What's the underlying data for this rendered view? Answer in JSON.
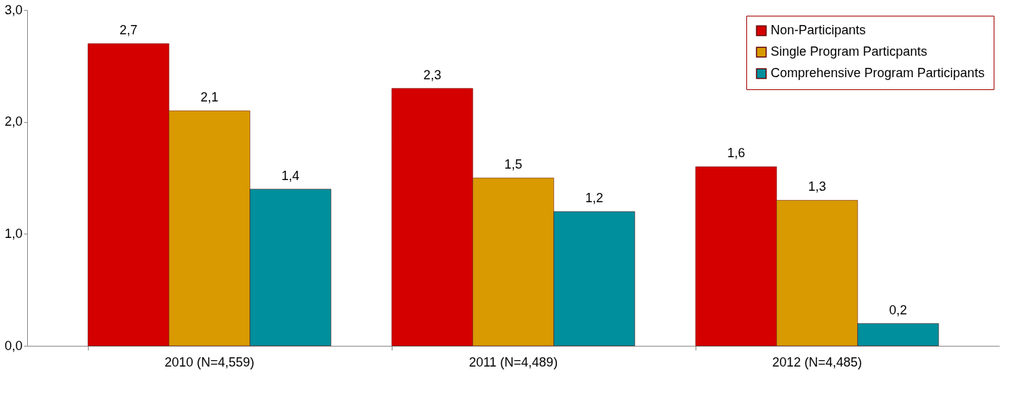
{
  "chart_data": {
    "type": "bar",
    "categories": [
      "2010 (N=4,559)",
      "2011 (N=4,489)",
      "2012 (N=4,485)"
    ],
    "series": [
      {
        "name": "Non-Participants",
        "color": "#d40000",
        "values": [
          2.7,
          2.3,
          1.6
        ],
        "value_labels": [
          "2,7",
          "2,3",
          "1,6"
        ]
      },
      {
        "name": "Single Program Particpants",
        "color": "#d89a00",
        "values": [
          2.1,
          1.5,
          1.3
        ],
        "value_labels": [
          "2,1",
          "1,5",
          "1,3"
        ]
      },
      {
        "name": "Comprehensive Program Participants",
        "color": "#008f9c",
        "values": [
          1.4,
          1.2,
          0.2
        ],
        "value_labels": [
          "1,4",
          "1,2",
          "0,2"
        ]
      }
    ],
    "ylim": [
      0,
      3
    ],
    "yticks": [
      {
        "value": 0,
        "label": "0,0"
      },
      {
        "value": 1,
        "label": "1,0"
      },
      {
        "value": 2,
        "label": "2,0"
      },
      {
        "value": 3,
        "label": "3,0"
      }
    ],
    "grid": false,
    "legend": "top right"
  }
}
